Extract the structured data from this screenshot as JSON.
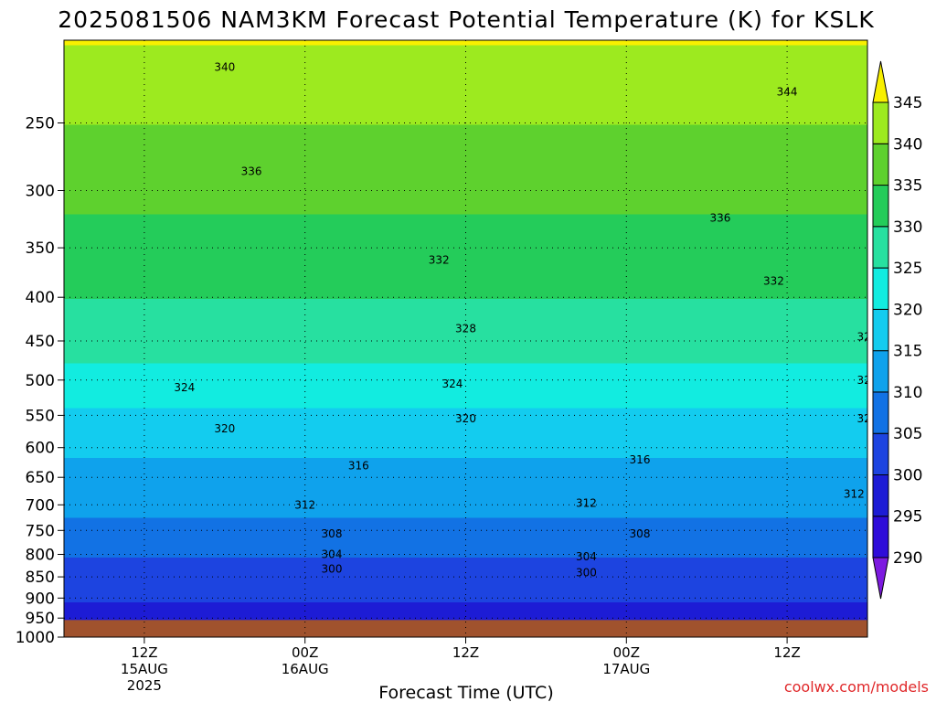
{
  "chart_data": {
    "type": "heatmap",
    "title": "2025081506 NAM3KM Forecast Potential Temperature (K) for KSLK",
    "xlabel": "Forecast Time (UTC)",
    "ylabel": "",
    "y_scale": "log-pressure (hPa, inverted)",
    "ylim": [
      1000,
      200
    ],
    "xlim": [
      "2025-08-15 06Z",
      "2025-08-17 18Z"
    ],
    "x_ticks": [
      {
        "time": "2025-08-15 12Z",
        "lines": [
          "12Z",
          "15AUG",
          "2025"
        ]
      },
      {
        "time": "2025-08-16 00Z",
        "lines": [
          "00Z",
          "16AUG"
        ]
      },
      {
        "time": "2025-08-16 12Z",
        "lines": [
          "12Z"
        ]
      },
      {
        "time": "2025-08-17 00Z",
        "lines": [
          "00Z",
          "17AUG"
        ]
      },
      {
        "time": "2025-08-17 12Z",
        "lines": [
          "12Z"
        ]
      }
    ],
    "y_ticks": [
      250,
      300,
      350,
      400,
      450,
      500,
      550,
      600,
      650,
      700,
      750,
      800,
      850,
      900,
      950,
      1000
    ],
    "grid": true,
    "surface_pressure_hPa": 955,
    "colorbar": {
      "levels": [
        290,
        295,
        300,
        305,
        310,
        315,
        320,
        325,
        330,
        335,
        340,
        345
      ],
      "colors": [
        "#7d1ae0",
        "#2e0cd9",
        "#1d1cd5",
        "#1d44e0",
        "#1272e4",
        "#0fa2ec",
        "#13ccef",
        "#12ece0",
        "#27e0a0",
        "#24cc5a",
        "#5ed12e",
        "#9dea1f",
        "#d6f014",
        "#f8f000"
      ]
    },
    "profile": [
      {
        "pressure": 950,
        "theta": 298
      },
      {
        "pressure": 900,
        "theta": 300
      },
      {
        "pressure": 850,
        "theta": 302
      },
      {
        "pressure": 800,
        "theta": 305
      },
      {
        "pressure": 750,
        "theta": 308
      },
      {
        "pressure": 700,
        "theta": 311
      },
      {
        "pressure": 650,
        "theta": 313
      },
      {
        "pressure": 600,
        "theta": 316
      },
      {
        "pressure": 550,
        "theta": 319
      },
      {
        "pressure": 500,
        "theta": 323
      },
      {
        "pressure": 450,
        "theta": 327
      },
      {
        "pressure": 400,
        "theta": 330
      },
      {
        "pressure": 350,
        "theta": 333
      },
      {
        "pressure": 300,
        "theta": 336
      },
      {
        "pressure": 250,
        "theta": 340
      },
      {
        "pressure": 200,
        "theta": 345
      }
    ],
    "contour_labels": [
      {
        "value": "340",
        "time_h": 12,
        "pressure": 215
      },
      {
        "value": "344",
        "time_h": 54,
        "pressure": 230
      },
      {
        "value": "344",
        "time_h": 61,
        "pressure": 215
      },
      {
        "value": "336",
        "time_h": 14,
        "pressure": 285
      },
      {
        "value": "336",
        "time_h": 49,
        "pressure": 323
      },
      {
        "value": "336",
        "time_h": 72,
        "pressure": 350
      },
      {
        "value": "332",
        "time_h": 28,
        "pressure": 362
      },
      {
        "value": "332",
        "time_h": 53,
        "pressure": 383
      },
      {
        "value": "328",
        "time_h": 30,
        "pressure": 435
      },
      {
        "value": "328",
        "time_h": 60,
        "pressure": 445
      },
      {
        "value": "324",
        "time_h": 9,
        "pressure": 510
      },
      {
        "value": "324",
        "time_h": 29,
        "pressure": 505
      },
      {
        "value": "324",
        "time_h": 60,
        "pressure": 500
      },
      {
        "value": "320",
        "time_h": 12,
        "pressure": 570
      },
      {
        "value": "320",
        "time_h": 30,
        "pressure": 555
      },
      {
        "value": "320",
        "time_h": 60,
        "pressure": 555
      },
      {
        "value": "316",
        "time_h": 22,
        "pressure": 630
      },
      {
        "value": "316",
        "time_h": 43,
        "pressure": 620
      },
      {
        "value": "316",
        "time_h": 66,
        "pressure": 605
      },
      {
        "value": "312",
        "time_h": 18,
        "pressure": 700
      },
      {
        "value": "312",
        "time_h": 39,
        "pressure": 697
      },
      {
        "value": "312",
        "time_h": 59,
        "pressure": 680
      },
      {
        "value": "308",
        "time_h": 20,
        "pressure": 757
      },
      {
        "value": "308",
        "time_h": 43,
        "pressure": 757
      },
      {
        "value": "308",
        "time_h": 62,
        "pressure": 755
      },
      {
        "value": "304",
        "time_h": 20,
        "pressure": 800
      },
      {
        "value": "304",
        "time_h": 39,
        "pressure": 805
      },
      {
        "value": "304",
        "time_h": 64,
        "pressure": 830
      },
      {
        "value": "300",
        "time_h": 20,
        "pressure": 832
      },
      {
        "value": "300",
        "time_h": 39,
        "pressure": 840
      }
    ]
  },
  "credit": "coolwx.com/models"
}
